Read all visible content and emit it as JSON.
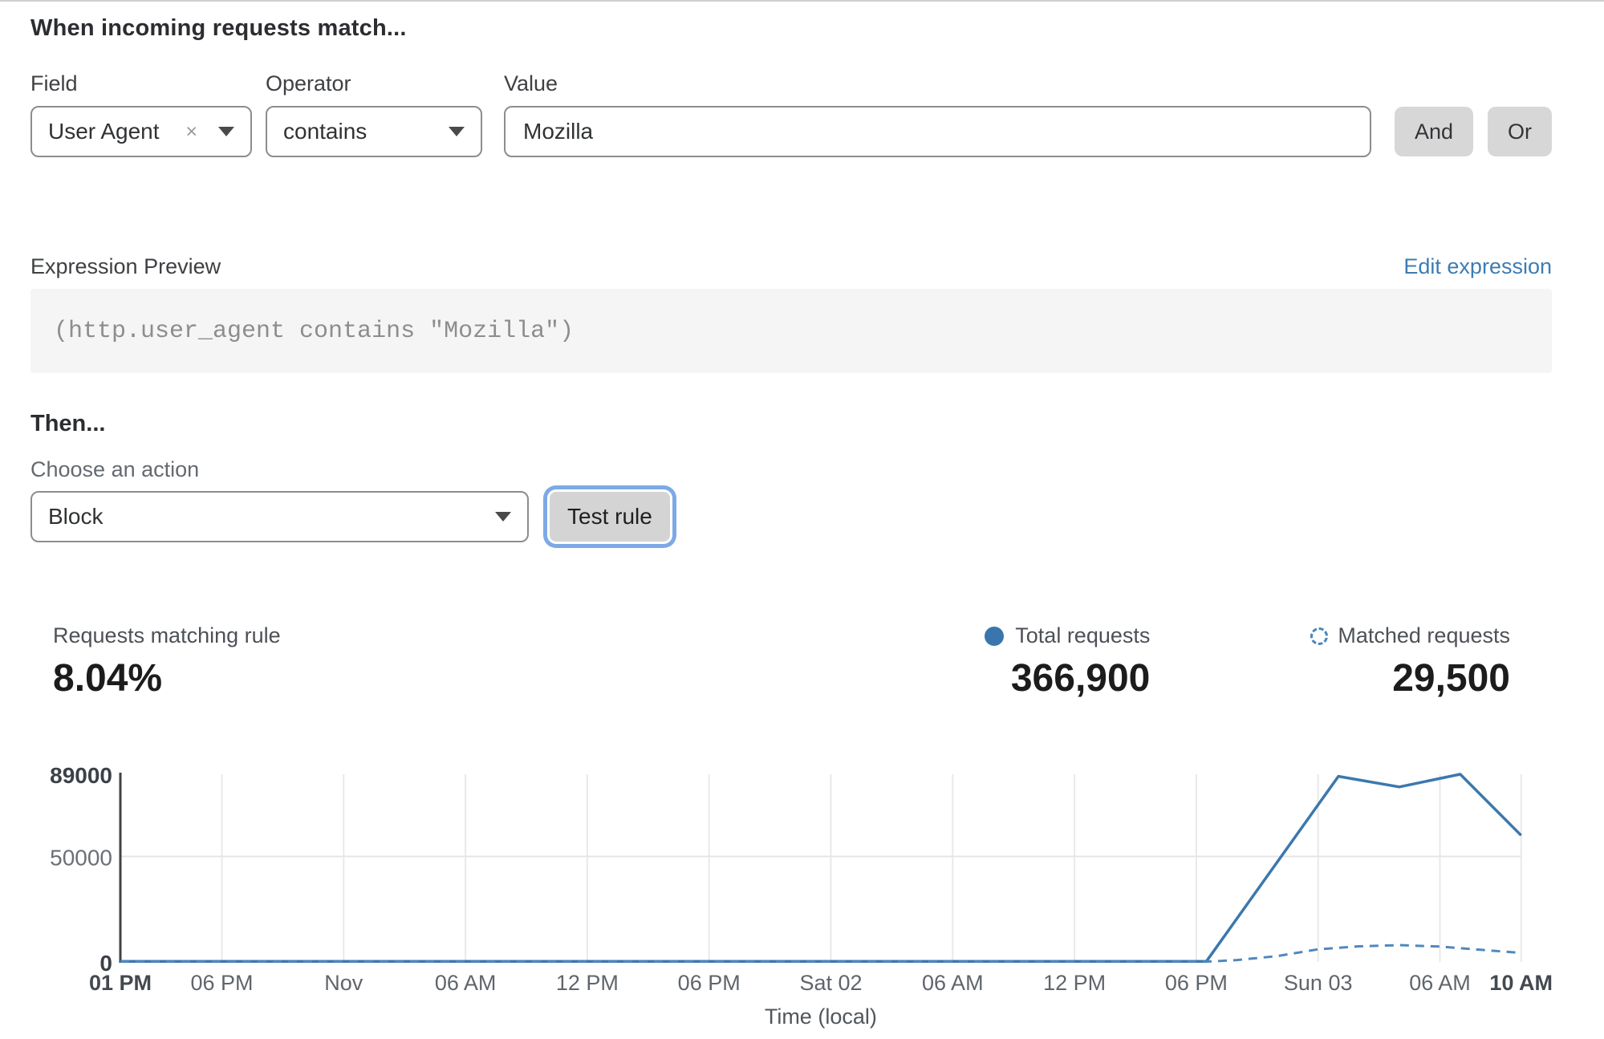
{
  "title": "When incoming requests match...",
  "condition": {
    "field": {
      "label": "Field",
      "value": "User Agent",
      "clear_icon": "×"
    },
    "operator": {
      "label": "Operator",
      "value": "contains"
    },
    "value": {
      "label": "Value",
      "text": "Mozilla"
    },
    "and_label": "And",
    "or_label": "Or"
  },
  "expression": {
    "label": "Expression Preview",
    "edit_link": "Edit expression",
    "code": "(http.user_agent contains \"Mozilla\")",
    "link_color": "#3d7cb3"
  },
  "then": {
    "heading": "Then...",
    "choose_label": "Choose an action",
    "action_value": "Block",
    "test_button": "Test rule"
  },
  "stats": {
    "matching": {
      "label": "Requests matching rule",
      "value": "8.04%"
    },
    "total": {
      "label": "Total requests",
      "value": "366,900",
      "color": "#3a76ad"
    },
    "matched": {
      "label": "Matched requests",
      "value": "29,500",
      "color": "#4d85bb"
    }
  },
  "chart_data": {
    "type": "line",
    "xlabel": "Time (local)",
    "ylim": [
      0,
      89000
    ],
    "grid": true,
    "legend_position": "top-right",
    "yticks": [
      {
        "v": 89000,
        "label": "89000",
        "bold": true
      },
      {
        "v": 50000,
        "label": "50000",
        "bold": false
      },
      {
        "v": 0,
        "label": "0",
        "bold": true
      }
    ],
    "xticks": [
      {
        "h": 0,
        "label": "01 PM",
        "bold": true
      },
      {
        "h": 5,
        "label": "06 PM"
      },
      {
        "h": 11,
        "label": "Nov"
      },
      {
        "h": 17,
        "label": "06 AM"
      },
      {
        "h": 23,
        "label": "12 PM"
      },
      {
        "h": 29,
        "label": "06 PM"
      },
      {
        "h": 35,
        "label": "Sat 02"
      },
      {
        "h": 41,
        "label": "06 AM"
      },
      {
        "h": 47,
        "label": "12 PM"
      },
      {
        "h": 53,
        "label": "06 PM"
      },
      {
        "h": 59,
        "label": "Sun 03"
      },
      {
        "h": 65,
        "label": "06 AM"
      },
      {
        "h": 69,
        "label": "10 AM",
        "bold": true
      }
    ],
    "series": [
      {
        "name": "Total requests",
        "style": "solid",
        "color": "#3b78ae",
        "points": [
          [
            0,
            300
          ],
          [
            53.5,
            300
          ],
          [
            60,
            88000
          ],
          [
            63,
            83000
          ],
          [
            66,
            89000
          ],
          [
            69,
            60000
          ]
        ]
      },
      {
        "name": "Matched requests",
        "style": "dashed",
        "color": "#5088bd",
        "points": [
          [
            0,
            150
          ],
          [
            53.5,
            150
          ],
          [
            55,
            900
          ],
          [
            57,
            2800
          ],
          [
            59,
            6000
          ],
          [
            61,
            7400
          ],
          [
            63,
            8000
          ],
          [
            65,
            7300
          ],
          [
            67,
            5800
          ],
          [
            69,
            4300
          ]
        ]
      }
    ]
  }
}
